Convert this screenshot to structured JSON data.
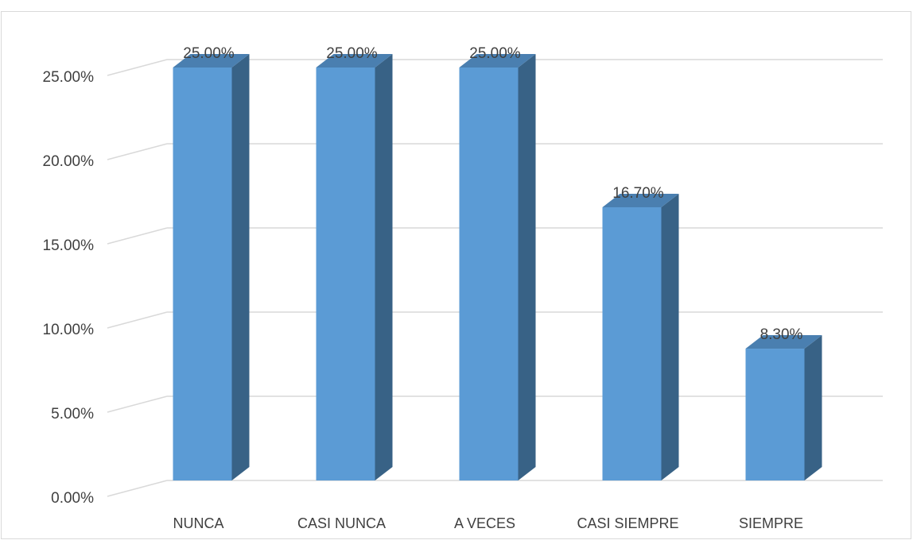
{
  "chart_data": {
    "type": "bar",
    "categories": [
      "NUNCA",
      "CASI NUNCA",
      "A VECES",
      "CASI SIEMPRE",
      "SIEMPRE"
    ],
    "values": [
      25.0,
      25.0,
      25.0,
      16.7,
      8.3
    ],
    "value_labels": [
      "25.00%",
      "25.00%",
      "25.00%",
      "16.70%",
      "8.30%"
    ],
    "y_ticks": [
      "0.00%",
      "5.00%",
      "10.00%",
      "15.00%",
      "20.00%",
      "25.00%"
    ],
    "ylim": [
      0,
      25
    ],
    "grid": true,
    "legend": "none",
    "style": "3d-column",
    "colors": {
      "front": "#5b9bd5",
      "side": "#386286",
      "top": "#4a7fb0",
      "grid": "#d9d9d9",
      "text": "#404040"
    }
  }
}
